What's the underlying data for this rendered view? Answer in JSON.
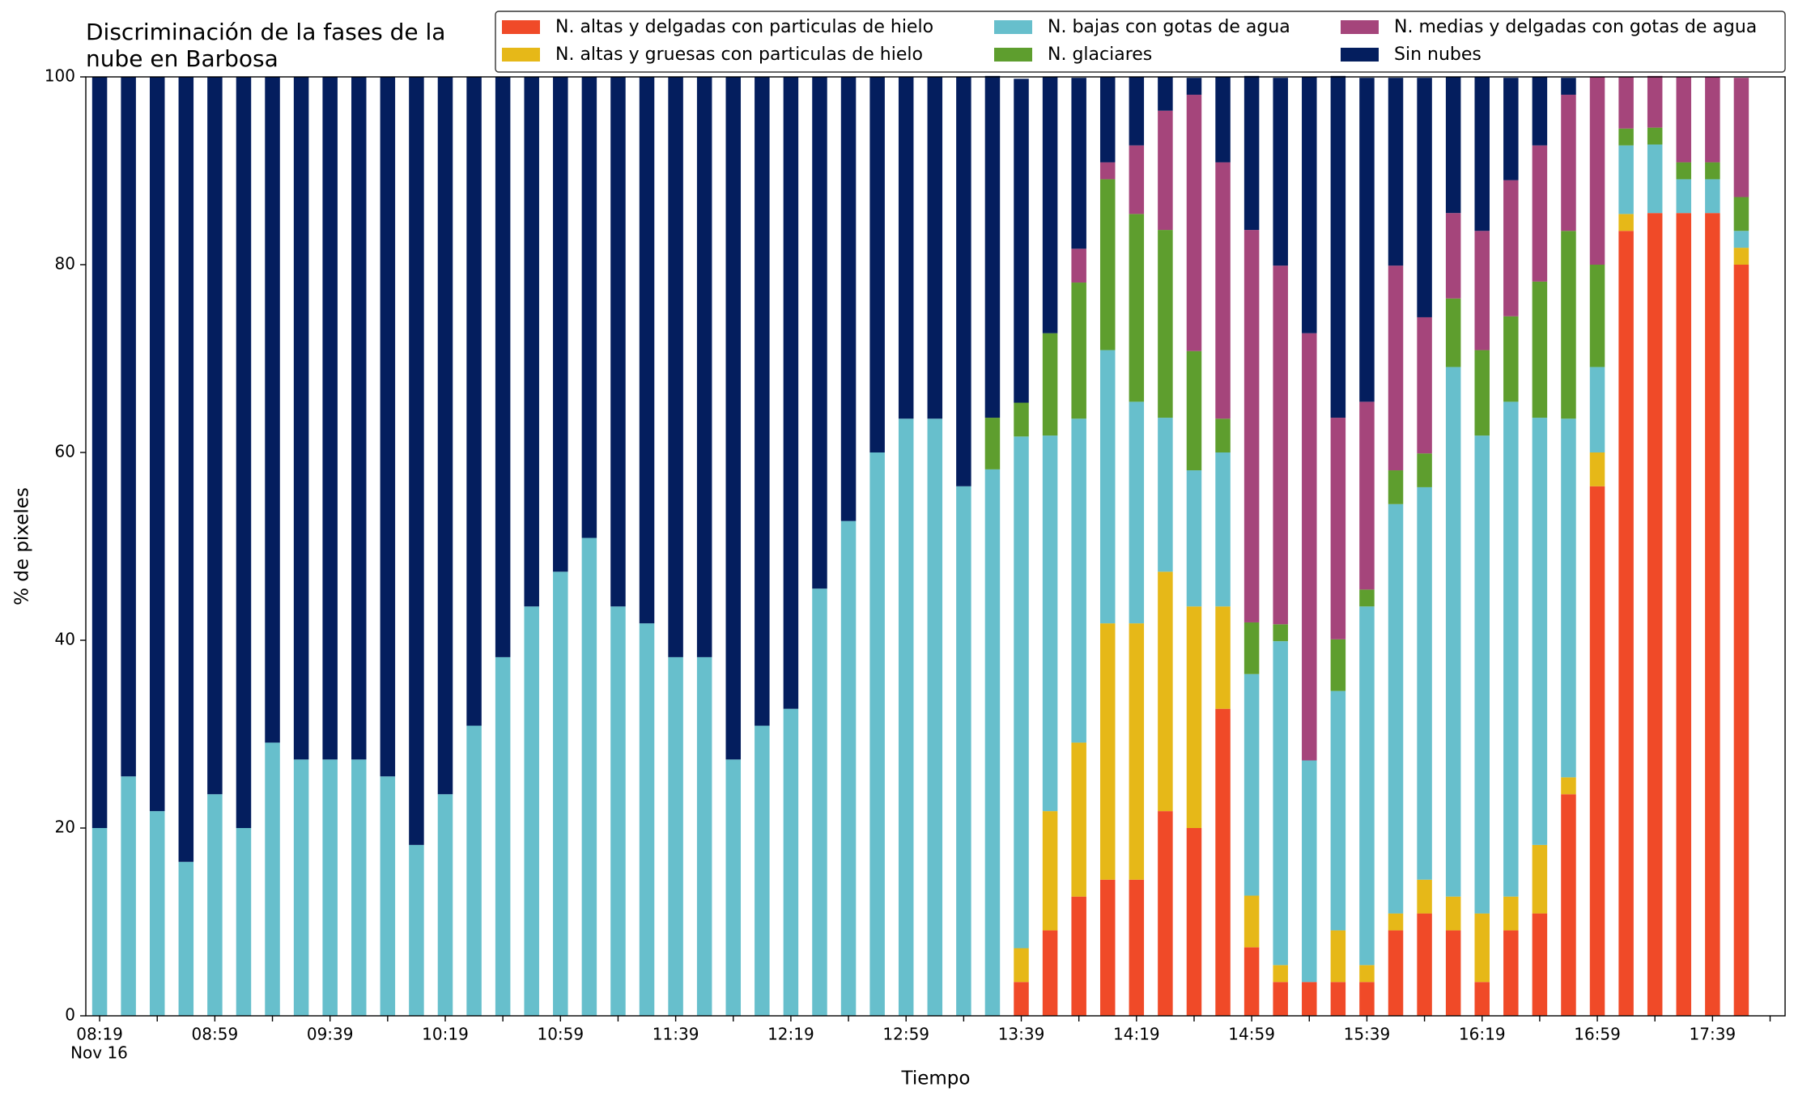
{
  "chart_data": {
    "type": "stacked_bar",
    "title": [
      "Discriminación de la fases de la",
      "nube en Barbosa"
    ],
    "xlabel": "Tiempo",
    "ylabel": "% de pixeles",
    "x_date_label": "Nov 16",
    "categories": [
      "08:19",
      null,
      null,
      null,
      "08:59",
      null,
      null,
      null,
      "09:39",
      null,
      null,
      null,
      "10:19",
      null,
      null,
      null,
      "10:59",
      null,
      null,
      null,
      "11:39",
      null,
      null,
      null,
      "12:19",
      null,
      null,
      null,
      "12:59",
      null,
      null,
      null,
      "13:39",
      null,
      null,
      null,
      "14:19",
      null,
      null,
      null,
      "14:59",
      null,
      null,
      null,
      "15:39",
      null,
      null,
      null,
      "16:19",
      null,
      null,
      null,
      "16:59",
      null,
      null,
      null,
      "17:39",
      null
    ],
    "ylim": [
      0,
      100
    ],
    "yticks": [
      0,
      20,
      40,
      60,
      80,
      100
    ],
    "grid": false,
    "legend": "top right",
    "series": [
      {
        "name": "N. altas y delgadas con particulas de hielo",
        "color": "#f04a28",
        "values": [
          0,
          0,
          0,
          0,
          0,
          0,
          0,
          0,
          0,
          0,
          0,
          0,
          0,
          0,
          0,
          0,
          0,
          0,
          0,
          0,
          0,
          0,
          0,
          0,
          0,
          0,
          0,
          0,
          0,
          0,
          0,
          0,
          3.6,
          9.1,
          12.7,
          14.5,
          14.5,
          21.8,
          20.0,
          32.7,
          7.3,
          3.6,
          3.6,
          3.6,
          3.6,
          9.1,
          10.9,
          9.1,
          3.6,
          9.1,
          10.9,
          23.6,
          56.4,
          83.6,
          85.5,
          85.5,
          85.5,
          80.0
        ]
      },
      {
        "name": "N. altas y gruesas con particulas de hielo",
        "color": "#e6b818",
        "values": [
          0,
          0,
          0,
          0,
          0,
          0,
          0,
          0,
          0,
          0,
          0,
          0,
          0,
          0,
          0,
          0,
          0,
          0,
          0,
          0,
          0,
          0,
          0,
          0,
          0,
          0,
          0,
          0,
          0,
          0,
          0,
          0,
          3.6,
          12.7,
          16.4,
          27.3,
          27.3,
          25.5,
          23.6,
          10.9,
          5.5,
          1.8,
          0,
          5.5,
          1.8,
          1.8,
          3.6,
          3.6,
          7.3,
          3.6,
          7.3,
          1.8,
          3.6,
          1.8,
          0,
          0,
          0,
          1.8
        ]
      },
      {
        "name": "N. bajas con gotas de agua",
        "color": "#67bfcc",
        "values": [
          20.0,
          25.5,
          21.8,
          16.4,
          23.6,
          20.0,
          29.1,
          27.3,
          27.3,
          27.3,
          25.5,
          18.2,
          23.6,
          30.9,
          38.2,
          43.6,
          47.3,
          50.9,
          43.6,
          41.8,
          38.2,
          38.2,
          27.3,
          30.9,
          32.7,
          45.5,
          52.7,
          60.0,
          63.6,
          63.6,
          56.4,
          58.2,
          54.5,
          40.0,
          34.5,
          29.1,
          23.6,
          16.4,
          14.5,
          16.4,
          23.6,
          34.5,
          23.6,
          25.5,
          38.2,
          43.6,
          41.8,
          56.4,
          50.9,
          52.7,
          45.5,
          38.2,
          9.1,
          7.3,
          7.3,
          3.6,
          3.6,
          1.8
        ]
      },
      {
        "name": "N. glaciares",
        "color": "#5e9e2e",
        "values": [
          0,
          0,
          0,
          0,
          0,
          0,
          0,
          0,
          0,
          0,
          0,
          0,
          0,
          0,
          0,
          0,
          0,
          0,
          0,
          0,
          0,
          0,
          0,
          0,
          0,
          0,
          0,
          0,
          0,
          0,
          0,
          5.5,
          3.6,
          10.9,
          14.5,
          18.2,
          20.0,
          20.0,
          12.7,
          3.6,
          5.5,
          1.8,
          0,
          5.5,
          1.8,
          3.6,
          3.6,
          7.3,
          9.1,
          9.1,
          14.5,
          20.0,
          10.9,
          1.8,
          1.8,
          1.8,
          1.8,
          3.6
        ]
      },
      {
        "name": "N. medias y delgadas con gotas de agua",
        "color": "#a5457b",
        "values": [
          0,
          0,
          0,
          0,
          0,
          0,
          0,
          0,
          0,
          0,
          0,
          0,
          0,
          0,
          0,
          0,
          0,
          0,
          0,
          0,
          0,
          0,
          0,
          0,
          0,
          0,
          0,
          0,
          0,
          0,
          0,
          0,
          0,
          0,
          3.6,
          1.8,
          7.3,
          12.7,
          27.3,
          27.3,
          41.8,
          38.2,
          45.5,
          23.6,
          20.0,
          21.8,
          14.5,
          9.1,
          12.7,
          14.5,
          14.5,
          14.5,
          20.0,
          5.5,
          5.5,
          9.1,
          9.1,
          12.7
        ]
      },
      {
        "name": "Sin nubes",
        "color": "#041e5e",
        "values": [
          80.0,
          74.5,
          78.2,
          83.6,
          76.4,
          80.0,
          70.9,
          72.7,
          72.7,
          72.7,
          74.5,
          81.8,
          76.4,
          69.1,
          61.8,
          56.4,
          52.7,
          49.1,
          56.4,
          58.2,
          61.8,
          61.8,
          72.7,
          69.1,
          67.3,
          54.5,
          47.3,
          40.0,
          36.4,
          36.4,
          43.6,
          36.4,
          34.5,
          27.3,
          18.2,
          9.1,
          7.3,
          3.6,
          1.8,
          9.1,
          16.4,
          20.0,
          27.3,
          36.4,
          34.5,
          20.0,
          25.5,
          14.5,
          16.4,
          10.9,
          7.3,
          1.8,
          0,
          0,
          0,
          0,
          0,
          0
        ]
      }
    ]
  }
}
